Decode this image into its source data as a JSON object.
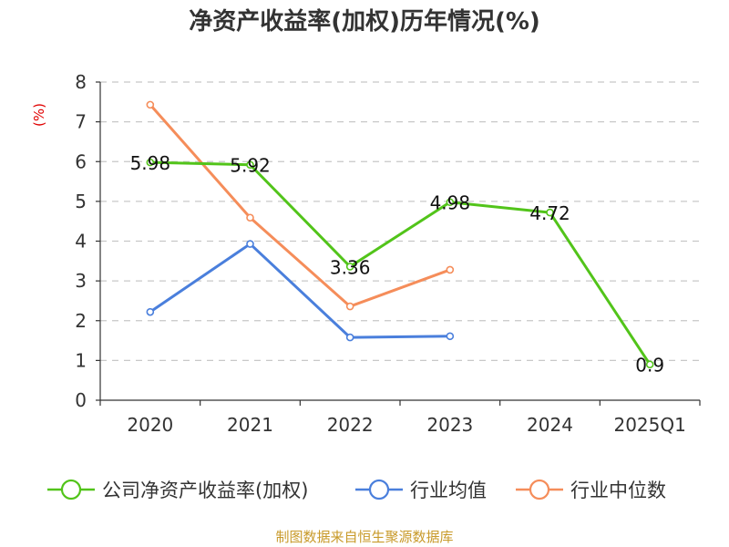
{
  "chart_data": {
    "type": "line",
    "title": "净资产收益率(加权)历年情况(%)",
    "ylabel": "(%)",
    "categories": [
      "2020",
      "2021",
      "2022",
      "2023",
      "2024",
      "2025Q1"
    ],
    "ylim": [
      0,
      8
    ],
    "yticks": [
      "0",
      "1",
      "2",
      "3",
      "4",
      "5",
      "6",
      "7",
      "8"
    ],
    "grid": true,
    "legend_position": "bottom",
    "series": [
      {
        "name": "公司净资产收益率(加权)",
        "color": "#52c41a",
        "values": [
          5.98,
          5.92,
          3.36,
          4.98,
          4.72,
          0.9
        ],
        "labels": [
          "5.98",
          "5.92",
          "3.36",
          "4.98",
          "4.72",
          "0.9"
        ]
      },
      {
        "name": "行业均值",
        "color": "#4a7fdc",
        "values": [
          2.22,
          3.93,
          1.58,
          1.61,
          null,
          null
        ]
      },
      {
        "name": "行业中位数",
        "color": "#f58d5a",
        "values": [
          7.43,
          4.59,
          2.36,
          3.28,
          null,
          null
        ]
      }
    ],
    "source": "制图数据来自恒生聚源数据库"
  }
}
